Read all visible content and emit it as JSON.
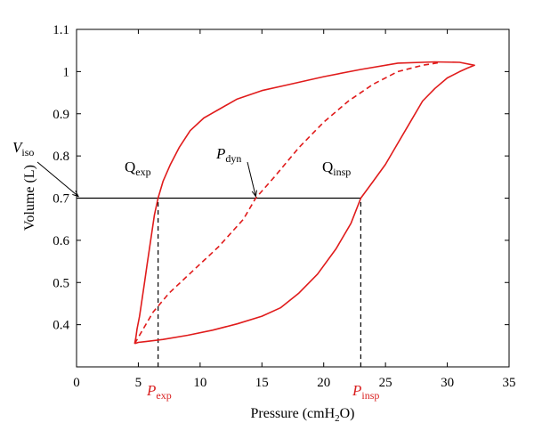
{
  "chart_data": {
    "type": "line",
    "xlabel": "Pressure (cmH",
    "xlabel_sub": "2",
    "xlabel_end": "O)",
    "ylabel": "Volume (L)",
    "xlim": [
      0,
      35
    ],
    "ylim": [
      0.3,
      1.1
    ],
    "xticks": [
      "0",
      "5",
      "10",
      "15",
      "20",
      "25",
      "30",
      "35"
    ],
    "yticks": [
      "0.4",
      "0.5",
      "0.6",
      "0.7",
      "0.8",
      "0.9",
      "1",
      "1.1"
    ],
    "grid": false,
    "series": [
      {
        "style": "solid",
        "color": "#e01b1b",
        "x": [
          4.7,
          5.0,
          5.6,
          7.0,
          9.0,
          11.0,
          13.0,
          15.0,
          16.5,
          18.0,
          19.5,
          21.0,
          22.2,
          23.0,
          24.0,
          25.0,
          26.0,
          27.0,
          28.0,
          29.0,
          30.0,
          31.0,
          31.6,
          32.2,
          31.0,
          29.0,
          26.0,
          23.0,
          20.0,
          17.0,
          15.0,
          13.0,
          11.5,
          10.3,
          9.2,
          8.3,
          7.6,
          7.0,
          6.6,
          6.3,
          6.1,
          5.9,
          5.7,
          5.5,
          5.3,
          5.1,
          4.9,
          4.8,
          4.7
        ],
        "y": [
          0.355,
          0.358,
          0.36,
          0.365,
          0.375,
          0.387,
          0.402,
          0.42,
          0.44,
          0.475,
          0.52,
          0.58,
          0.64,
          0.7,
          0.74,
          0.78,
          0.83,
          0.88,
          0.93,
          0.96,
          0.985,
          1.0,
          1.008,
          1.015,
          1.022,
          1.023,
          1.02,
          1.005,
          0.988,
          0.968,
          0.955,
          0.935,
          0.91,
          0.89,
          0.86,
          0.82,
          0.78,
          0.74,
          0.7,
          0.66,
          0.62,
          0.58,
          0.54,
          0.5,
          0.46,
          0.42,
          0.39,
          0.37,
          0.355
        ]
      },
      {
        "style": "dashed",
        "color": "#e01b1b",
        "x": [
          4.7,
          5.3,
          6.2,
          7.5,
          9.5,
          11.5,
          13.5,
          14.5,
          16.0,
          18.0,
          20.0,
          22.0,
          24.0,
          26.0,
          28.0,
          29.5
        ],
        "y": [
          0.355,
          0.385,
          0.43,
          0.475,
          0.53,
          0.585,
          0.65,
          0.7,
          0.75,
          0.82,
          0.88,
          0.93,
          0.97,
          1.0,
          1.015,
          1.022
        ]
      }
    ],
    "reference_lines": [
      {
        "orientation": "horizontal",
        "style": "solid",
        "y": 0.7,
        "x_range": [
          0,
          23.0
        ]
      },
      {
        "orientation": "vertical",
        "style": "dashed",
        "x": 6.6,
        "y_range": [
          0.3,
          0.7
        ]
      },
      {
        "orientation": "vertical",
        "style": "dashed",
        "x": 23.0,
        "y_range": [
          0.3,
          0.7
        ]
      }
    ],
    "annotations": [
      {
        "id": "viso",
        "main": "V",
        "sub": "iso",
        "italic": true,
        "x": 0,
        "y": 0.7
      },
      {
        "id": "qexp",
        "main": "Q",
        "sub": "exp",
        "italic": false,
        "x": 6.6,
        "y": 0.7
      },
      {
        "id": "pdyn",
        "main": "P",
        "sub": "dyn",
        "italic": true,
        "x": 14.5,
        "y": 0.7
      },
      {
        "id": "qinsp",
        "main": "Q",
        "sub": "insp",
        "italic": false,
        "x": 23.0,
        "y": 0.7
      },
      {
        "id": "pexp",
        "main": "P",
        "sub": "exp",
        "italic": true,
        "x": 6.6,
        "y": 0.3,
        "color": "#d92020"
      },
      {
        "id": "pinsp",
        "main": "P",
        "sub": "insp",
        "italic": true,
        "x": 23.0,
        "y": 0.3,
        "color": "#d92020"
      }
    ]
  }
}
